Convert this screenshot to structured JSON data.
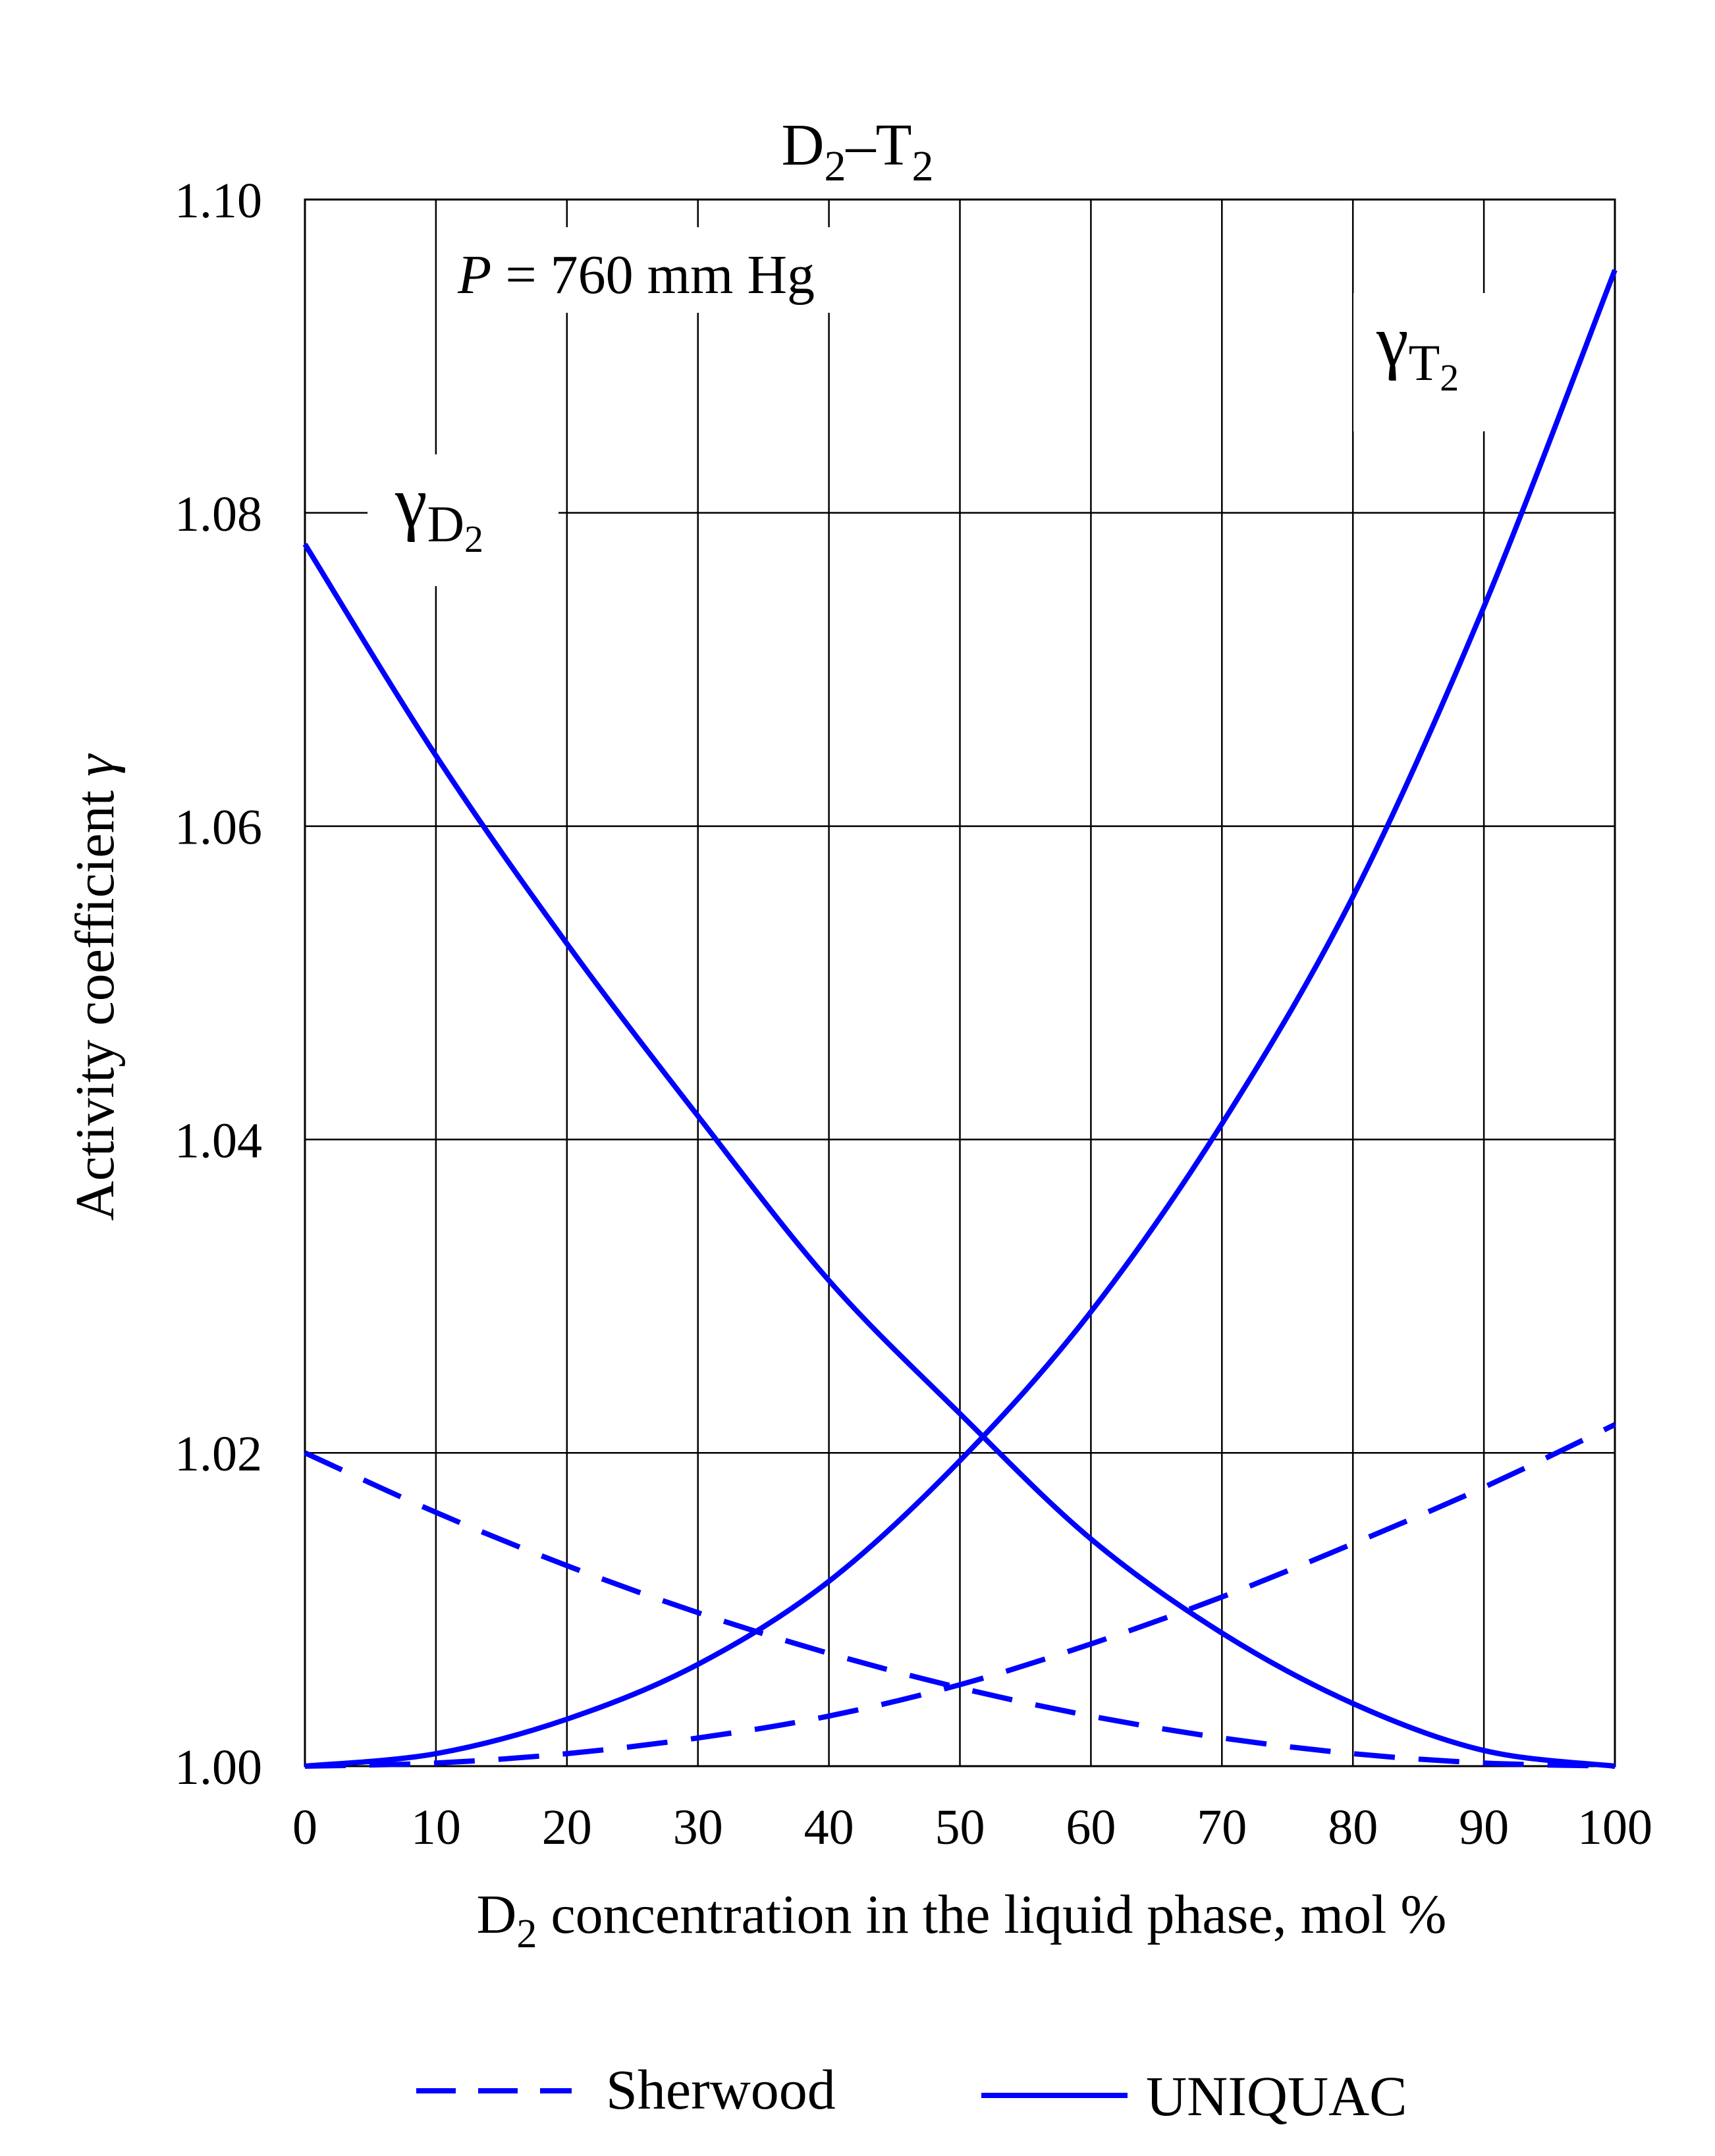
{
  "chart_data": {
    "type": "line",
    "title": {
      "main": "D",
      "sub": "2",
      "sep": "–",
      "main2": "T",
      "sub2": "2"
    },
    "xlabel": {
      "main": "D",
      "sub": "2",
      "rest": " concentration in the liquid phase, mol %"
    },
    "ylabel": {
      "text": "Activity coefficient ",
      "symbol": "γ"
    },
    "xlim": [
      0,
      100
    ],
    "ylim": [
      1.0,
      1.1
    ],
    "x_ticks": [
      0,
      10,
      20,
      30,
      40,
      50,
      60,
      70,
      80,
      90,
      100
    ],
    "x_tick_labels": [
      "0",
      "10",
      "20",
      "30",
      "40",
      "50",
      "60",
      "70",
      "80",
      "90",
      "100"
    ],
    "y_ticks": [
      1.0,
      1.02,
      1.04,
      1.06,
      1.08,
      1.1
    ],
    "y_tick_labels": [
      "1.00",
      "1.02",
      "1.04",
      "1.06",
      "1.08",
      "1.10"
    ],
    "grid": true,
    "annotations": {
      "pressure": {
        "symbol": "P",
        "text": " = 760 mm Hg"
      },
      "gamma_d2": {
        "greek": "γ",
        "sub": "D",
        "sub2": "2",
        "x": 6,
        "y": 1.0815
      },
      "gamma_t2": {
        "greek": "γ",
        "sub": "T",
        "sub2": "2",
        "x": 88,
        "y": 1.0905
      }
    },
    "color": "#0000ff",
    "series": [
      {
        "name": "UNIQUAC γD2",
        "model": "UNIQUAC",
        "style": "solid",
        "x": [
          0,
          10,
          20,
          30,
          40,
          50,
          60,
          70,
          80,
          90,
          100
        ],
        "y": [
          1.078,
          1.0645,
          1.0525,
          1.0415,
          1.031,
          1.0225,
          1.0145,
          1.0085,
          1.004,
          1.001,
          1.0
        ]
      },
      {
        "name": "UNIQUAC γT2",
        "model": "UNIQUAC",
        "style": "solid",
        "x": [
          0,
          10,
          20,
          30,
          40,
          50,
          60,
          70,
          80,
          90,
          100
        ],
        "y": [
          1.0,
          1.0008,
          1.003,
          1.0065,
          1.0118,
          1.0195,
          1.029,
          1.041,
          1.0555,
          1.074,
          1.0955
        ]
      },
      {
        "name": "Sherwood γD2",
        "model": "Sherwood",
        "style": "dashed",
        "x": [
          0,
          10,
          20,
          30,
          40,
          50,
          60,
          70,
          80,
          90,
          100
        ],
        "y": [
          1.02,
          1.0162,
          1.0128,
          1.0098,
          1.0072,
          1.005,
          1.0032,
          1.0018,
          1.0008,
          1.0002,
          1.0
        ]
      },
      {
        "name": "Sherwood γT2",
        "model": "Sherwood",
        "style": "dashed",
        "x": [
          0,
          10,
          20,
          30,
          40,
          50,
          60,
          70,
          80,
          90,
          100
        ],
        "y": [
          1.0,
          1.0002,
          1.0008,
          1.0018,
          1.0032,
          1.0052,
          1.0078,
          1.0108,
          1.0142,
          1.0178,
          1.0218
        ]
      }
    ],
    "legend": {
      "position": "bottom",
      "entries": [
        {
          "label": "Sherwood",
          "style": "dashed"
        },
        {
          "label": "UNIQUAC",
          "style": "solid"
        }
      ]
    }
  }
}
